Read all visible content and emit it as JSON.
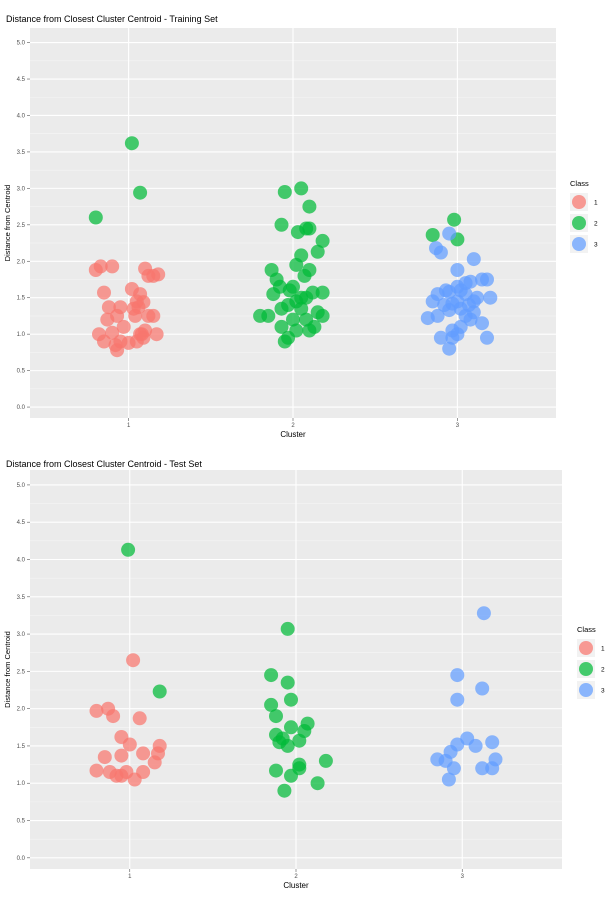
{
  "chart_data": [
    {
      "type": "scatter",
      "title": "Distance from Closest Cluster Centroid - Training Set",
      "xlabel": "Cluster",
      "ylabel": "Distance from Centroid",
      "x_categories": [
        "1",
        "2",
        "3"
      ],
      "y_ticks": [
        "0.0",
        "0.5",
        "1.0",
        "1.5",
        "2.0",
        "2.5",
        "3.0",
        "3.5",
        "4.0",
        "4.5",
        "5.0"
      ],
      "ylim": [
        -0.15,
        5.2
      ],
      "grid": true,
      "legend": {
        "title": "Class",
        "position": "right",
        "entries": [
          "1",
          "2",
          "3"
        ]
      },
      "colors": {
        "1": "#F8766D",
        "2": "#00BA38",
        "3": "#619CFF"
      },
      "series": [
        {
          "name": "1",
          "points": [
            [
              0.8,
              1.88
            ],
            [
              0.83,
              1.93
            ],
            [
              0.9,
              1.93
            ],
            [
              0.85,
              1.57
            ],
            [
              0.88,
              1.37
            ],
            [
              0.95,
              1.37
            ],
            [
              0.87,
              1.2
            ],
            [
              0.93,
              1.25
            ],
            [
              0.97,
              1.1
            ],
            [
              0.82,
              1.0
            ],
            [
              0.9,
              1.02
            ],
            [
              0.95,
              0.9
            ],
            [
              0.85,
              0.9
            ],
            [
              0.92,
              0.85
            ],
            [
              0.93,
              0.78
            ],
            [
              1.0,
              0.88
            ],
            [
              1.05,
              0.9
            ],
            [
              1.07,
              1.0
            ],
            [
              1.08,
              1.0
            ],
            [
              1.04,
              1.25
            ],
            [
              1.06,
              1.37
            ],
            [
              1.05,
              1.45
            ],
            [
              1.12,
              1.25
            ],
            [
              1.15,
              1.25
            ],
            [
              1.17,
              1.0
            ],
            [
              1.1,
              1.9
            ],
            [
              1.12,
              1.8
            ],
            [
              1.15,
              1.8
            ],
            [
              1.18,
              1.82
            ],
            [
              1.09,
              1.44
            ],
            [
              1.03,
              1.35
            ],
            [
              1.07,
              1.55
            ],
            [
              1.1,
              1.05
            ],
            [
              1.02,
              1.62
            ],
            [
              1.09,
              0.95
            ]
          ]
        },
        {
          "name": "2",
          "points": [
            [
              0.8,
              2.6
            ],
            [
              1.02,
              3.62
            ],
            [
              1.07,
              2.94
            ],
            [
              1.93,
              2.5
            ],
            [
              1.95,
              2.95
            ],
            [
              2.05,
              3.0
            ],
            [
              2.1,
              2.75
            ],
            [
              2.03,
              2.4
            ],
            [
              2.08,
              2.45
            ],
            [
              2.1,
              2.45
            ],
            [
              2.18,
              2.28
            ],
            [
              2.15,
              2.13
            ],
            [
              2.05,
              2.08
            ],
            [
              2.02,
              1.95
            ],
            [
              2.1,
              1.88
            ],
            [
              2.07,
              1.8
            ],
            [
              1.87,
              1.88
            ],
            [
              1.9,
              1.75
            ],
            [
              2.0,
              1.65
            ],
            [
              2.12,
              1.57
            ],
            [
              2.18,
              1.57
            ],
            [
              1.88,
              1.55
            ],
            [
              2.02,
              1.45
            ],
            [
              1.97,
              1.4
            ],
            [
              1.93,
              1.35
            ],
            [
              2.05,
              1.35
            ],
            [
              1.85,
              1.25
            ],
            [
              2.0,
              1.2
            ],
            [
              2.08,
              1.2
            ],
            [
              1.93,
              1.1
            ],
            [
              2.02,
              1.05
            ],
            [
              2.1,
              1.05
            ],
            [
              1.97,
              0.95
            ],
            [
              2.13,
              1.1
            ],
            [
              1.95,
              0.9
            ],
            [
              1.8,
              1.25
            ],
            [
              2.18,
              1.25
            ],
            [
              1.98,
              1.6
            ],
            [
              1.92,
              1.65
            ],
            [
              2.05,
              1.5
            ],
            [
              2.15,
              1.3
            ],
            [
              2.08,
              1.5
            ],
            [
              2.85,
              2.36
            ],
            [
              2.98,
              2.57
            ],
            [
              3.0,
              2.3
            ]
          ]
        },
        {
          "name": "3",
          "points": [
            [
              2.87,
              2.18
            ],
            [
              2.9,
              2.12
            ],
            [
              2.95,
              2.38
            ],
            [
              3.0,
              1.88
            ],
            [
              3.1,
              2.03
            ],
            [
              3.15,
              1.75
            ],
            [
              3.08,
              1.72
            ],
            [
              2.93,
              1.6
            ],
            [
              2.95,
              1.58
            ],
            [
              3.0,
              1.65
            ],
            [
              3.02,
              1.6
            ],
            [
              3.05,
              1.55
            ],
            [
              3.18,
              1.75
            ],
            [
              3.2,
              1.5
            ],
            [
              2.88,
              1.55
            ],
            [
              2.85,
              1.45
            ],
            [
              3.1,
              1.45
            ],
            [
              3.12,
              1.5
            ],
            [
              2.97,
              1.42
            ],
            [
              3.0,
              1.45
            ],
            [
              2.95,
              1.33
            ],
            [
              3.02,
              1.35
            ],
            [
              3.07,
              1.4
            ],
            [
              2.88,
              1.25
            ],
            [
              2.82,
              1.22
            ],
            [
              3.05,
              1.25
            ],
            [
              3.08,
              1.2
            ],
            [
              3.15,
              1.15
            ],
            [
              2.97,
              1.05
            ],
            [
              3.02,
              1.1
            ],
            [
              2.9,
              0.95
            ],
            [
              2.97,
              0.95
            ],
            [
              3.18,
              0.95
            ],
            [
              2.95,
              0.8
            ],
            [
              3.0,
              1.0
            ],
            [
              3.1,
              1.3
            ],
            [
              2.92,
              1.4
            ],
            [
              3.05,
              1.7
            ]
          ]
        }
      ]
    },
    {
      "type": "scatter",
      "title": "Distance from Closest Cluster Centroid - Test Set",
      "xlabel": "Cluster",
      "ylabel": "Distance from Centroid",
      "x_categories": [
        "1",
        "2",
        "3"
      ],
      "y_ticks": [
        "0.0",
        "0.5",
        "1.0",
        "1.5",
        "2.0",
        "2.5",
        "3.0",
        "3.5",
        "4.0",
        "4.5",
        "5.0"
      ],
      "ylim": [
        -0.15,
        5.2
      ],
      "grid": true,
      "legend": {
        "title": "Class",
        "position": "right",
        "entries": [
          "1",
          "2",
          "3"
        ]
      },
      "colors": {
        "1": "#F8766D",
        "2": "#00BA38",
        "3": "#619CFF"
      },
      "series": [
        {
          "name": "1",
          "points": [
            [
              0.8,
              1.97
            ],
            [
              0.87,
              2.0
            ],
            [
              0.9,
              1.9
            ],
            [
              0.95,
              1.62
            ],
            [
              1.06,
              1.87
            ],
            [
              1.02,
              2.65
            ],
            [
              0.85,
              1.35
            ],
            [
              0.95,
              1.37
            ],
            [
              1.0,
              1.52
            ],
            [
              1.08,
              1.4
            ],
            [
              1.17,
              1.4
            ],
            [
              1.18,
              1.5
            ],
            [
              1.15,
              1.28
            ],
            [
              0.8,
              1.17
            ],
            [
              0.88,
              1.15
            ],
            [
              0.92,
              1.1
            ],
            [
              0.95,
              1.1
            ],
            [
              0.98,
              1.15
            ],
            [
              1.03,
              1.05
            ],
            [
              1.08,
              1.15
            ]
          ]
        },
        {
          "name": "2",
          "points": [
            [
              0.99,
              4.13
            ],
            [
              1.18,
              2.23
            ],
            [
              1.95,
              3.07
            ],
            [
              1.85,
              2.45
            ],
            [
              1.95,
              2.35
            ],
            [
              1.97,
              2.12
            ],
            [
              1.85,
              2.05
            ],
            [
              1.88,
              1.9
            ],
            [
              2.07,
              1.8
            ],
            [
              1.97,
              1.75
            ],
            [
              1.88,
              1.65
            ],
            [
              1.92,
              1.6
            ],
            [
              2.05,
              1.7
            ],
            [
              1.95,
              1.5
            ],
            [
              1.9,
              1.55
            ],
            [
              2.02,
              1.57
            ],
            [
              2.18,
              1.3
            ],
            [
              2.02,
              1.2
            ],
            [
              1.88,
              1.17
            ],
            [
              2.02,
              1.25
            ],
            [
              1.97,
              1.1
            ],
            [
              2.13,
              1.0
            ],
            [
              1.93,
              0.9
            ]
          ]
        },
        {
          "name": "3",
          "points": [
            [
              3.13,
              3.28
            ],
            [
              2.97,
              2.45
            ],
            [
              3.12,
              2.27
            ],
            [
              2.97,
              2.12
            ],
            [
              2.85,
              1.32
            ],
            [
              2.93,
              1.42
            ],
            [
              2.97,
              1.52
            ],
            [
              3.03,
              1.6
            ],
            [
              3.08,
              1.5
            ],
            [
              3.18,
              1.55
            ],
            [
              3.2,
              1.32
            ],
            [
              2.9,
              1.3
            ],
            [
              2.95,
              1.2
            ],
            [
              3.12,
              1.2
            ],
            [
              3.18,
              1.2
            ],
            [
              2.92,
              1.05
            ]
          ]
        }
      ]
    }
  ]
}
